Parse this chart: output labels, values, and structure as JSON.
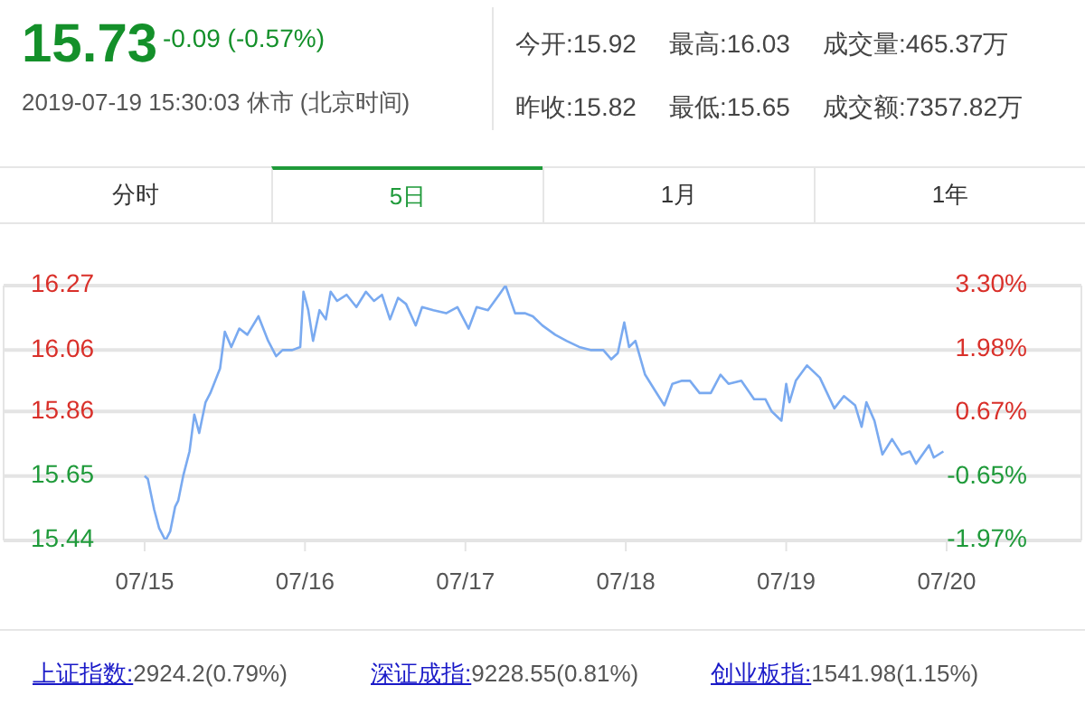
{
  "chart_data": {
    "type": "line",
    "annotations": [
      "15.73",
      "-0.09 (-0.57%)",
      "2019-07-19 15:30:03 休市 (北京时间)",
      "今开:15.92",
      "最高:16.03",
      "成交量:465.37万",
      "昨收:15.82",
      "最低:15.65",
      "成交额:7357.82万",
      "分时",
      "5日",
      "1月",
      "1年",
      "上证指数:",
      "2924.2(0.79%)",
      "深证成指:",
      "9228.55(0.81%)",
      "创业板指:",
      "1541.98(1.15%)"
    ],
    "series": [
      {
        "color": "#7aaaf0",
        "x": [
          "2019-07-15T00:00",
          "2019-07-15T00:29",
          "2019-07-15T01:26",
          "2019-07-15T02:10",
          "2019-07-15T03:07",
          "2019-07-15T03:50",
          "2019-07-15T04:34",
          "2019-07-15T05:02",
          "2019-07-15T05:46",
          "2019-07-15T06:43",
          "2019-07-15T07:26",
          "2019-07-15T08:10",
          "2019-07-15T09:07",
          "2019-07-15T09:50",
          "2019-07-15T11:17",
          "2019-07-15T12:00",
          "2019-07-15T12:58",
          "2019-07-15T14:10",
          "2019-07-15T15:22",
          "2019-07-15T17:02",
          "2019-07-15T18:29",
          "2019-07-15T19:41",
          "2019-07-15T20:38",
          "2019-07-15T22:05",
          "2019-07-15T23:17",
          "2019-07-15T23:46",
          "2019-07-16T00:29",
          "2019-07-16T01:12",
          "2019-07-16T02:10",
          "2019-07-16T03:07",
          "2019-07-16T03:50",
          "2019-07-16T04:48",
          "2019-07-16T06:14",
          "2019-07-16T07:41",
          "2019-07-16T09:07",
          "2019-07-16T10:19",
          "2019-07-16T11:31",
          "2019-07-16T12:43",
          "2019-07-16T13:55",
          "2019-07-16T15:07",
          "2019-07-16T16:34",
          "2019-07-16T17:31",
          "2019-07-16T19:12",
          "2019-07-16T21:07",
          "2019-07-16T22:48",
          "2019-07-17T00:29",
          "2019-07-17T01:41",
          "2019-07-17T03:22",
          "2019-07-17T05:02",
          "2019-07-17T06:00",
          "2019-07-17T07:26",
          "2019-07-17T08:53",
          "2019-07-17T10:05",
          "2019-07-17T11:31",
          "2019-07-17T13:26",
          "2019-07-17T15:07",
          "2019-07-17T17:02",
          "2019-07-17T18:43",
          "2019-07-17T20:38",
          "2019-07-17T21:50",
          "2019-07-17T22:48",
          "2019-07-17T23:46",
          "2019-07-18T00:29",
          "2019-07-18T01:26",
          "2019-07-18T02:53",
          "2019-07-18T04:19",
          "2019-07-18T05:46",
          "2019-07-18T06:58",
          "2019-07-18T08:24",
          "2019-07-18T09:36",
          "2019-07-18T11:02",
          "2019-07-18T12:43",
          "2019-07-18T14:10",
          "2019-07-18T15:22",
          "2019-07-18T17:17",
          "2019-07-18T19:12",
          "2019-07-18T20:53",
          "2019-07-18T21:50",
          "2019-07-18T23:17",
          "2019-07-19T00:00",
          "2019-07-19T00:29",
          "2019-07-19T01:26",
          "2019-07-19T03:07",
          "2019-07-19T05:02",
          "2019-07-19T07:12",
          "2019-07-19T08:38",
          "2019-07-19T10:19",
          "2019-07-19T11:17",
          "2019-07-19T12:00",
          "2019-07-19T13:12",
          "2019-07-19T14:24",
          "2019-07-19T15:50",
          "2019-07-19T17:17",
          "2019-07-19T18:29",
          "2019-07-19T19:26",
          "2019-07-19T21:22",
          "2019-07-19T22:05",
          "2019-07-19T23:31"
        ],
        "values": [
          15.65,
          15.64,
          15.54,
          15.48,
          15.44,
          15.47,
          15.55,
          15.57,
          15.65,
          15.73,
          15.85,
          15.79,
          15.89,
          15.92,
          16.0,
          16.12,
          16.07,
          16.13,
          16.11,
          16.17,
          16.09,
          16.04,
          16.06,
          16.06,
          16.07,
          16.25,
          16.19,
          16.09,
          16.19,
          16.16,
          16.25,
          16.22,
          16.24,
          16.2,
          16.25,
          16.22,
          16.24,
          16.16,
          16.23,
          16.21,
          16.14,
          16.2,
          16.19,
          16.18,
          16.2,
          16.13,
          16.2,
          16.19,
          16.24,
          16.27,
          16.18,
          16.18,
          16.17,
          16.14,
          16.11,
          16.09,
          16.07,
          16.06,
          16.06,
          16.03,
          16.05,
          16.15,
          16.07,
          16.09,
          15.98,
          15.93,
          15.88,
          15.95,
          15.96,
          15.96,
          15.92,
          15.92,
          15.98,
          15.95,
          15.96,
          15.9,
          15.9,
          15.86,
          15.83,
          15.95,
          15.89,
          15.96,
          16.01,
          15.97,
          15.87,
          15.91,
          15.88,
          15.81,
          15.89,
          15.83,
          15.72,
          15.77,
          15.72,
          15.73,
          15.69,
          15.75,
          15.71,
          15.73
        ]
      }
    ],
    "xlim": [
      "2019-07-14T02:54",
      "2019-07-20T20:10"
    ],
    "xticks": [
      {
        "value": "2019-07-15",
        "label": "07/15"
      },
      {
        "value": "2019-07-16",
        "label": "07/16"
      },
      {
        "value": "2019-07-17",
        "label": "07/17"
      },
      {
        "value": "2019-07-18",
        "label": "07/18"
      },
      {
        "value": "2019-07-19",
        "label": "07/19"
      },
      {
        "value": "2019-07-20",
        "label": "07/20"
      }
    ],
    "ylim": [
      15.44,
      16.27
    ],
    "yticks": [
      15.44,
      15.65,
      15.86,
      16.06,
      16.27
    ],
    "y2lim": [
      -1.97,
      3.3
    ],
    "y2ticks": [
      {
        "value": -1.97,
        "label": "-1.97%"
      },
      {
        "value": -0.65,
        "label": "-0.65%"
      },
      {
        "value": 0.67,
        "label": "0.67%"
      },
      {
        "value": 1.98,
        "label": "1.98%"
      },
      {
        "value": 3.3,
        "label": "3.30%"
      }
    ],
    "grid": "y",
    "marker": "none",
    "line_style": "solid"
  }
}
